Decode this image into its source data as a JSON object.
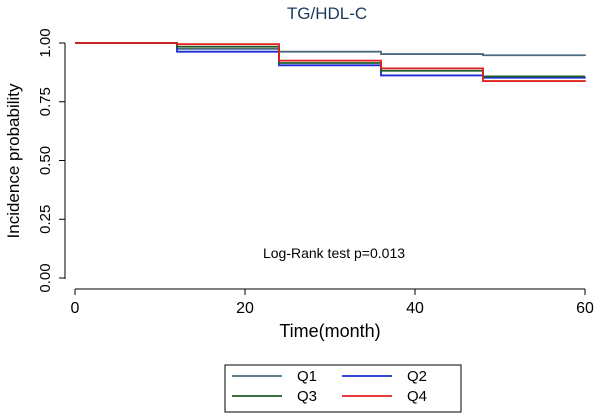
{
  "chart_data": {
    "type": "line",
    "step": true,
    "title": "TG/HDL-C",
    "xlabel": "Time(month)",
    "ylabel": "Incidence probability",
    "xlim": [
      0,
      60
    ],
    "ylim": [
      0,
      1
    ],
    "x_ticks": [
      "0",
      "20",
      "40",
      "60"
    ],
    "y_ticks": [
      "0.00",
      "0.25",
      "0.50",
      "0.75",
      "1.00"
    ],
    "annotation": "Log-Rank test p=0.013",
    "legend_position": "bottom",
    "series": [
      {
        "name": "Q1",
        "color": "#4a6b7d",
        "points": [
          [
            0,
            1.0
          ],
          [
            12,
            0.975
          ],
          [
            24,
            0.963
          ],
          [
            36,
            0.953
          ],
          [
            48,
            0.948
          ],
          [
            60,
            0.945
          ]
        ]
      },
      {
        "name": "Q2",
        "color": "#1c2bd6",
        "points": [
          [
            0,
            1.0
          ],
          [
            12,
            0.963
          ],
          [
            24,
            0.905
          ],
          [
            36,
            0.862
          ],
          [
            48,
            0.852
          ],
          [
            60,
            0.85
          ]
        ]
      },
      {
        "name": "Q3",
        "color": "#1e5c2a",
        "points": [
          [
            0,
            1.0
          ],
          [
            12,
            0.984
          ],
          [
            24,
            0.915
          ],
          [
            36,
            0.882
          ],
          [
            48,
            0.858
          ],
          [
            60,
            0.858
          ]
        ]
      },
      {
        "name": "Q4",
        "color": "#e0201c",
        "points": [
          [
            0,
            1.0
          ],
          [
            12,
            0.995
          ],
          [
            24,
            0.925
          ],
          [
            36,
            0.892
          ],
          [
            48,
            0.838
          ],
          [
            60,
            0.835
          ]
        ]
      }
    ]
  }
}
